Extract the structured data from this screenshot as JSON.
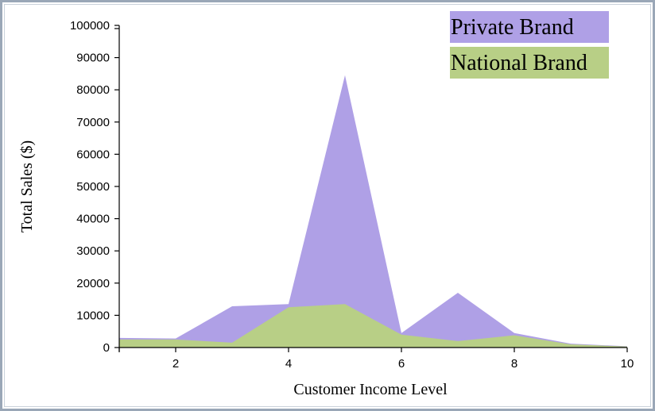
{
  "chart_data": {
    "type": "area",
    "title": "",
    "xlabel": "Customer Income Level",
    "ylabel": "Total Sales ($)",
    "xlim": [
      1,
      10
    ],
    "ylim": [
      0,
      100000
    ],
    "x": [
      1,
      2,
      3,
      4,
      5,
      6,
      7,
      8,
      9,
      10
    ],
    "x_ticks": [
      "2",
      "4",
      "6",
      "8",
      "10"
    ],
    "x_tick_values": [
      2,
      4,
      6,
      8,
      10
    ],
    "y_ticks": [
      "0",
      "10000",
      "20000",
      "30000",
      "40000",
      "50000",
      "60000",
      "70000",
      "80000",
      "90000",
      "100000"
    ],
    "y_tick_values": [
      0,
      10000,
      20000,
      30000,
      40000,
      50000,
      60000,
      70000,
      80000,
      90000,
      100000
    ],
    "series": [
      {
        "name": "Private Brand",
        "color": "#afa0e6",
        "values": [
          3000,
          2800,
          12800,
          13500,
          84500,
          4500,
          17000,
          4500,
          1200,
          400
        ]
      },
      {
        "name": "National Brand",
        "color": "#b8cf86",
        "values": [
          2500,
          2500,
          1500,
          12500,
          13500,
          4000,
          2000,
          3800,
          1000,
          300
        ]
      }
    ],
    "legend": [
      {
        "label": "Private Brand",
        "color": "#afa0e6"
      },
      {
        "label": "National Brand",
        "color": "#b8cf86"
      }
    ],
    "legend_position": "top-right",
    "grid": false
  }
}
